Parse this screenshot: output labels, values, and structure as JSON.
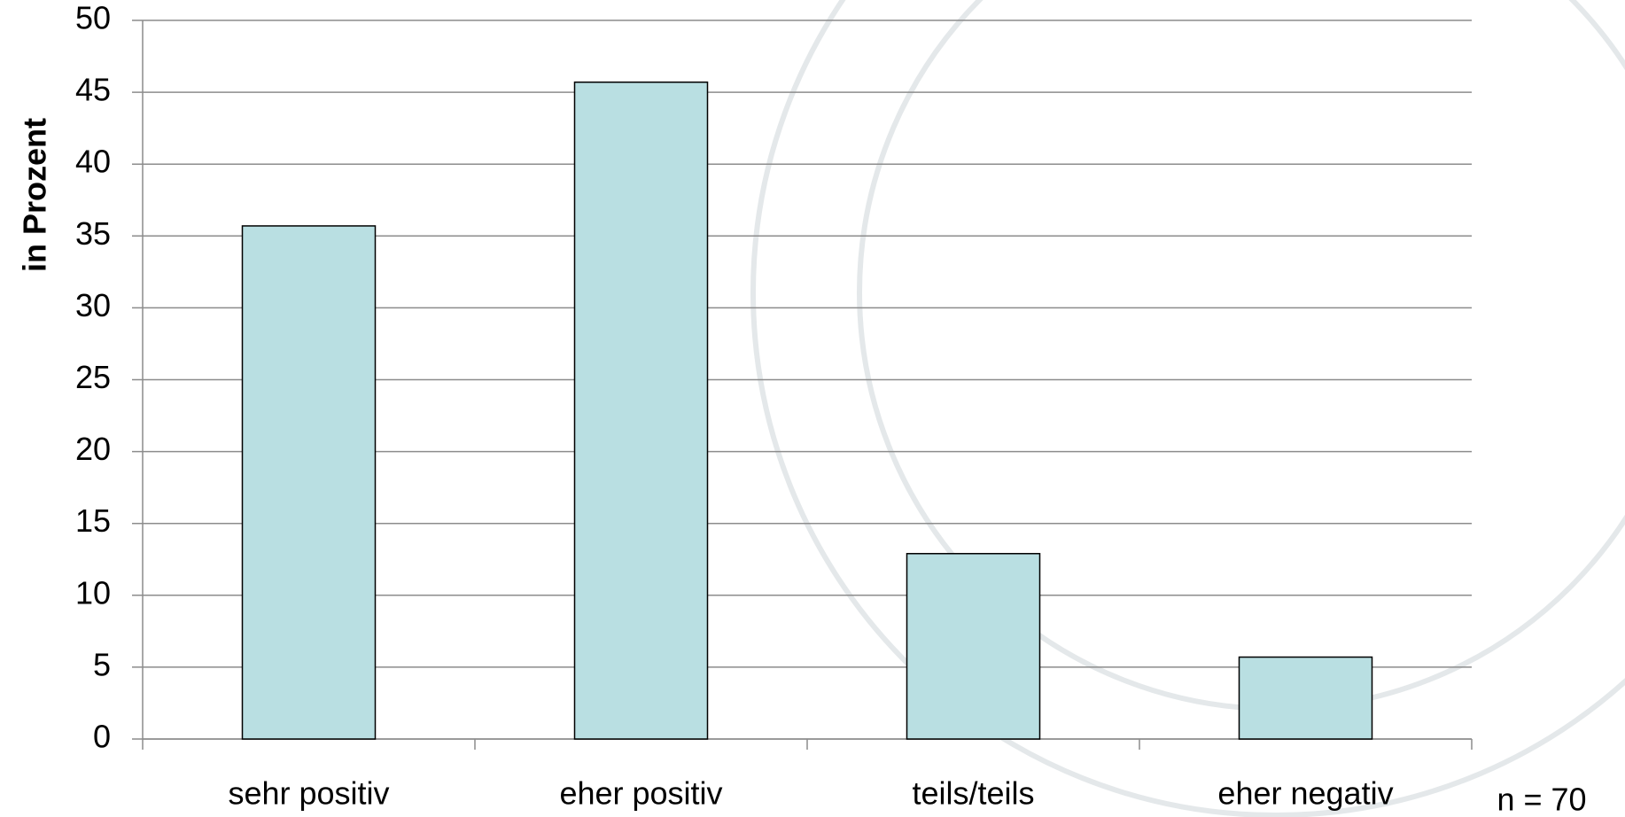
{
  "chart_data": {
    "type": "bar",
    "y_label": "in Prozent",
    "annotation": "n = 70",
    "categories": [
      "sehr positiv",
      "eher positiv",
      "teils/teils",
      "eher negativ"
    ],
    "values": [
      35.7,
      45.7,
      12.9,
      5.7
    ],
    "color": "#b9dfe2",
    "ylim": [
      0,
      50
    ],
    "yticks": [
      0,
      5,
      10,
      15,
      20,
      25,
      30,
      35,
      40,
      45,
      50
    ],
    "grid": true
  }
}
